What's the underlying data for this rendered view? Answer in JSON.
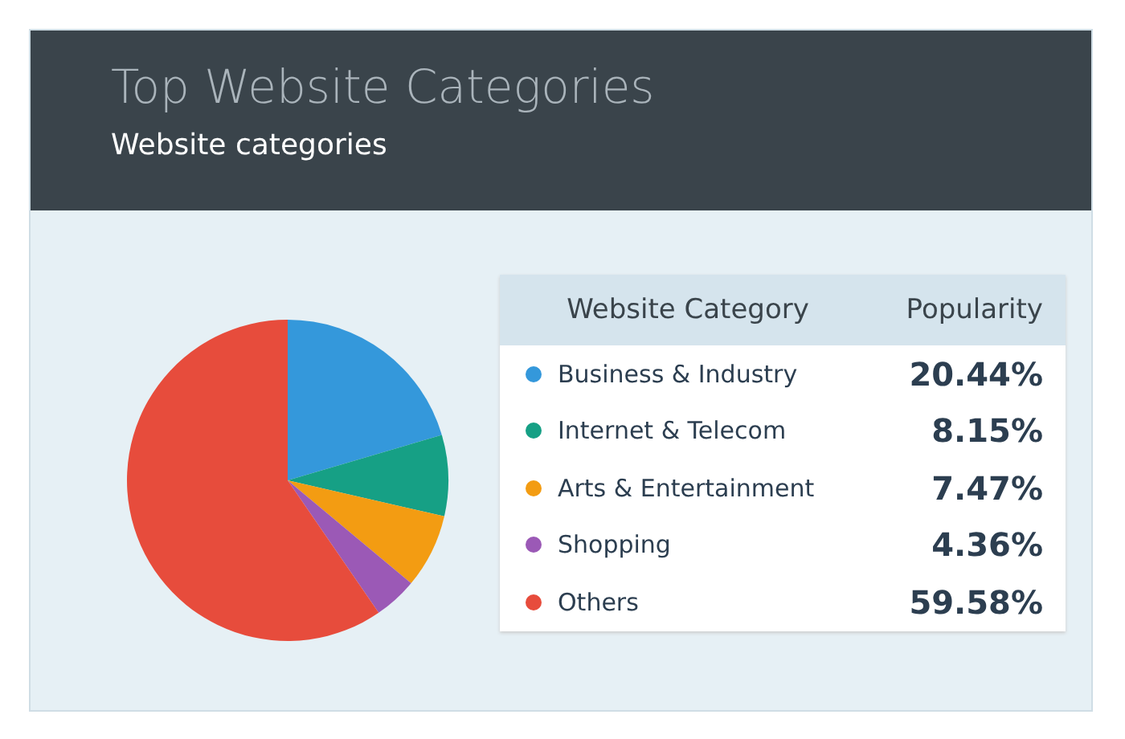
{
  "chart_data": {
    "type": "pie",
    "title": "Top Website Categories",
    "subtitle": "Website categories",
    "legend_title": "Website Category",
    "ylabel": "Popularity",
    "categories": [
      "Business & Industry",
      "Internet & Telecom",
      "Arts & Entertainment",
      "Shopping",
      "Others"
    ],
    "values": [
      20.44,
      8.15,
      7.47,
      4.36,
      59.58
    ],
    "colors": [
      "#3498db",
      "#16a085",
      "#f39c12",
      "#9b59b6",
      "#e74c3c"
    ],
    "value_labels": [
      "20.44%",
      "8.15%",
      "7.47%",
      "4.36%",
      "59.58%"
    ],
    "legend": "right"
  }
}
